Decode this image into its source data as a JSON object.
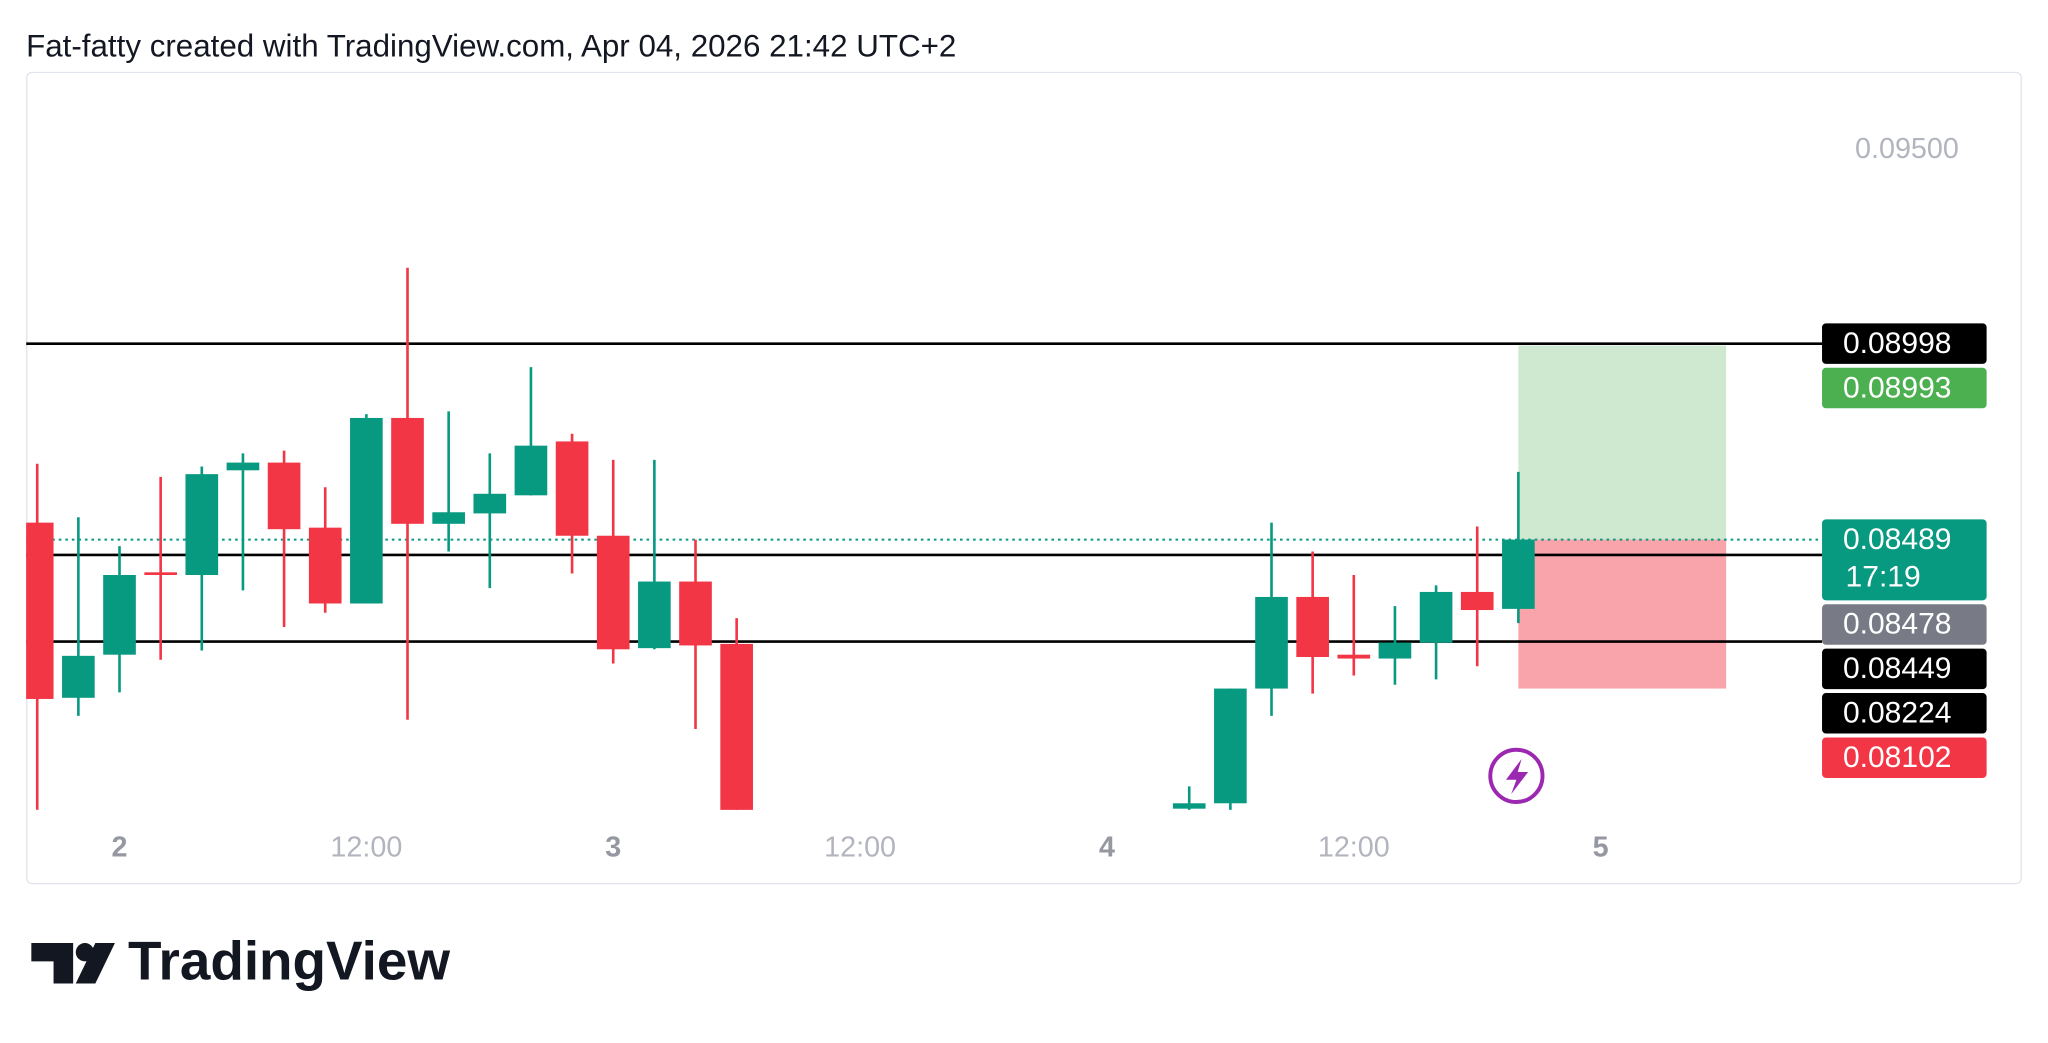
{
  "chart_data": {
    "type": "candlestick",
    "title": "Fat-fatty created with TradingView.com, Apr 04, 2026 21:42 UTC+2",
    "categories": [
      null,
      null,
      "2",
      null,
      null,
      null,
      null,
      null,
      "12:00",
      null,
      null,
      null,
      null,
      null,
      "3",
      null,
      null,
      null,
      null,
      null,
      "12:00",
      null,
      null,
      null,
      null,
      null,
      "4",
      null,
      null,
      null,
      null,
      null,
      "12:00",
      null,
      null,
      null,
      null,
      null,
      "5",
      null,
      null,
      null,
      null,
      null
    ],
    "open": [
      0.08533,
      0.08078,
      0.0819,
      0.08404,
      0.08397,
      0.08669,
      0.08689,
      0.0852,
      0.08323,
      0.08805,
      0.0853,
      0.08557,
      0.08604,
      0.08744,
      0.08499,
      0.08207,
      0.0838,
      0.08218,
      null,
      null,
      null,
      null,
      null,
      null,
      null,
      null,
      null,
      null,
      0.0779,
      0.07804,
      0.08102,
      0.0834,
      0.0819,
      0.0818,
      0.08221,
      0.08353,
      0.08309,
      null,
      null,
      null,
      null,
      null,
      null,
      null
    ],
    "high": [
      0.08686,
      0.08547,
      0.08472,
      0.08652,
      0.08679,
      0.08713,
      0.0872,
      0.08625,
      0.08815,
      0.09195,
      0.08822,
      0.08713,
      0.08937,
      0.08764,
      0.08696,
      0.08696,
      0.08489,
      0.08285,
      null,
      null,
      null,
      null,
      null,
      null,
      null,
      null,
      null,
      null,
      0.07848,
      0.08102,
      0.08533,
      0.08458,
      0.08397,
      0.08316,
      0.0837,
      0.08523,
      0.08665,
      null,
      null,
      null,
      null,
      null,
      null,
      null
    ],
    "low": [
      0.07787,
      0.08031,
      0.08092,
      0.08177,
      0.08201,
      0.08357,
      0.08262,
      0.08299,
      0.08323,
      0.08021,
      0.08458,
      0.08363,
      0.08604,
      0.08401,
      0.08167,
      0.08204,
      0.07997,
      0.0775,
      null,
      null,
      null,
      null,
      null,
      null,
      null,
      null,
      null,
      null,
      0.0775,
      0.0775,
      0.08031,
      0.08089,
      0.08136,
      0.08112,
      0.08126,
      0.0816,
      0.08272,
      null,
      null,
      null,
      null,
      null,
      null,
      null
    ],
    "close": [
      0.08075,
      0.08187,
      0.08397,
      0.08397,
      0.08659,
      0.08689,
      0.08516,
      0.08323,
      0.08805,
      0.0853,
      0.0856,
      0.08608,
      0.08733,
      0.08499,
      0.08204,
      0.0838,
      0.08214,
      0.0775,
      null,
      null,
      null,
      null,
      null,
      null,
      null,
      null,
      null,
      null,
      0.07804,
      0.08102,
      0.0834,
      0.08184,
      0.0818,
      0.08221,
      0.08353,
      0.08306,
      0.08489,
      null,
      null,
      null,
      null,
      null,
      null,
      null
    ],
    "up_color": "#089981",
    "down_color": "#f23645",
    "ylim": [
      0.07787,
      0.09704
    ],
    "yticks": [
      {
        "value": 0.095,
        "label": "0.09500"
      }
    ],
    "horizontal_lines": [
      0.08998,
      0.08449,
      0.08224
    ],
    "last_price": 0.08489,
    "position": {
      "entry": 0.08489,
      "target": 0.08993,
      "stop": 0.08102
    },
    "price_labels": [
      {
        "value": 0.08998,
        "color": "#000000"
      },
      {
        "value": 0.08993,
        "color": "#4caf50"
      },
      {
        "value": 0.08489,
        "color": "#089981",
        "countdown": "17:19"
      },
      {
        "value": 0.08478,
        "color": "#787b86"
      },
      {
        "value": 0.08449,
        "color": "#000000"
      },
      {
        "value": 0.08224,
        "color": "#000000"
      },
      {
        "value": 0.08102,
        "color": "#f23645"
      }
    ]
  },
  "footer_logo": "TradingView"
}
